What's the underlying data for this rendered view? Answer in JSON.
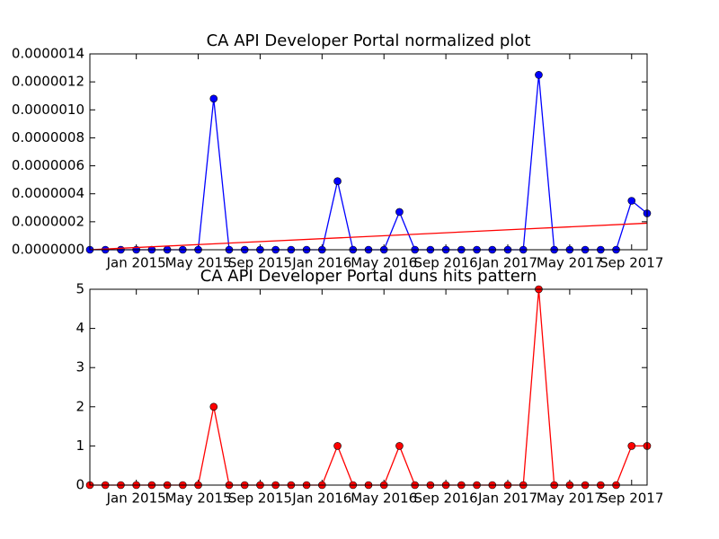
{
  "chart_data": [
    {
      "type": "line",
      "title": "CA API Developer Portal normalized plot",
      "x": [
        "2014-10",
        "2014-11",
        "2014-12",
        "2015-01",
        "2015-02",
        "2015-03",
        "2015-04",
        "2015-05",
        "2015-06",
        "2015-07",
        "2015-08",
        "2015-09",
        "2015-10",
        "2015-11",
        "2015-12",
        "2016-01",
        "2016-02",
        "2016-03",
        "2016-04",
        "2016-05",
        "2016-06",
        "2016-07",
        "2016-08",
        "2016-09",
        "2016-10",
        "2016-11",
        "2016-12",
        "2017-01",
        "2017-02",
        "2017-03",
        "2017-04",
        "2017-05",
        "2017-06",
        "2017-07",
        "2017-08",
        "2017-09",
        "2017-10"
      ],
      "series": [
        {
          "color": "#0000ff",
          "marker": true,
          "values": [
            0,
            0,
            0,
            0,
            0,
            0,
            0,
            0,
            1.08e-06,
            0,
            0,
            0,
            0,
            0,
            0,
            0,
            4.9e-07,
            0,
            0,
            0,
            2.7e-07,
            0,
            0,
            0,
            0,
            0,
            0,
            0,
            0,
            1.25e-06,
            0,
            0,
            0,
            0,
            0,
            3.5e-07,
            2.6e-07
          ]
        },
        {
          "color": "#ff0000",
          "marker": false,
          "x": [
            "2014-10",
            "2017-10"
          ],
          "values": [
            0,
            1.9e-07
          ]
        }
      ],
      "xlim": [
        "2014-10",
        "2017-10"
      ],
      "xticks": [
        {
          "value": "2015-01",
          "label": "Jan 2015"
        },
        {
          "value": "2015-05",
          "label": "May 2015"
        },
        {
          "value": "2015-09",
          "label": "Sep 2015"
        },
        {
          "value": "2016-01",
          "label": "Jan 2016"
        },
        {
          "value": "2016-05",
          "label": "May 2016"
        },
        {
          "value": "2016-09",
          "label": "Sep 2016"
        },
        {
          "value": "2017-01",
          "label": "Jan 2017"
        },
        {
          "value": "2017-05",
          "label": "May 2017"
        },
        {
          "value": "2017-09",
          "label": "Sep 2017"
        }
      ],
      "ylim": [
        0,
        1.4e-06
      ],
      "yticks": [
        {
          "value": 0,
          "label": "0.0000000"
        },
        {
          "value": 2e-07,
          "label": "0.0000002"
        },
        {
          "value": 4e-07,
          "label": "0.0000004"
        },
        {
          "value": 6e-07,
          "label": "0.0000006"
        },
        {
          "value": 8e-07,
          "label": "0.0000008"
        },
        {
          "value": 1e-06,
          "label": "0.0000010"
        },
        {
          "value": 1.2e-06,
          "label": "0.0000012"
        },
        {
          "value": 1.4e-06,
          "label": "0.0000014"
        }
      ]
    },
    {
      "type": "line",
      "title": "CA API Developer Portal duns hits pattern",
      "x": [
        "2014-10",
        "2014-11",
        "2014-12",
        "2015-01",
        "2015-02",
        "2015-03",
        "2015-04",
        "2015-05",
        "2015-06",
        "2015-07",
        "2015-08",
        "2015-09",
        "2015-10",
        "2015-11",
        "2015-12",
        "2016-01",
        "2016-02",
        "2016-03",
        "2016-04",
        "2016-05",
        "2016-06",
        "2016-07",
        "2016-08",
        "2016-09",
        "2016-10",
        "2016-11",
        "2016-12",
        "2017-01",
        "2017-02",
        "2017-03",
        "2017-04",
        "2017-05",
        "2017-06",
        "2017-07",
        "2017-08",
        "2017-09",
        "2017-10"
      ],
      "series": [
        {
          "color": "#ff0000",
          "marker": true,
          "values": [
            0,
            0,
            0,
            0,
            0,
            0,
            0,
            0,
            2,
            0,
            0,
            0,
            0,
            0,
            0,
            0,
            1,
            0,
            0,
            0,
            1,
            0,
            0,
            0,
            0,
            0,
            0,
            0,
            0,
            5,
            0,
            0,
            0,
            0,
            0,
            1,
            1
          ]
        }
      ],
      "xlim": [
        "2014-10",
        "2017-10"
      ],
      "xticks": [
        {
          "value": "2015-01",
          "label": "Jan 2015"
        },
        {
          "value": "2015-05",
          "label": "May 2015"
        },
        {
          "value": "2015-09",
          "label": "Sep 2015"
        },
        {
          "value": "2016-01",
          "label": "Jan 2016"
        },
        {
          "value": "2016-05",
          "label": "May 2016"
        },
        {
          "value": "2016-09",
          "label": "Sep 2016"
        },
        {
          "value": "2017-01",
          "label": "Jan 2017"
        },
        {
          "value": "2017-05",
          "label": "May 2017"
        },
        {
          "value": "2017-09",
          "label": "Sep 2017"
        }
      ],
      "ylim": [
        0,
        5
      ],
      "yticks": [
        0,
        1,
        2,
        3,
        4,
        5
      ]
    }
  ]
}
